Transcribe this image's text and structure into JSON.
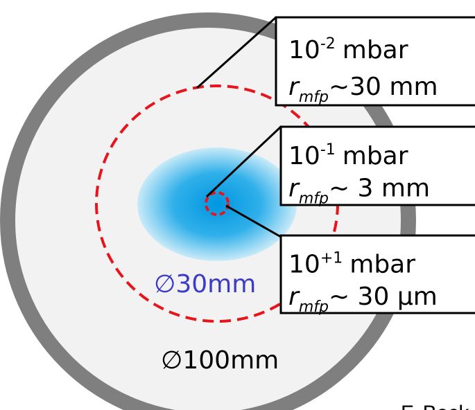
{
  "boxes": [
    {
      "pressure_base": "10",
      "pressure_exponent": "-2",
      "pressure_unit": "mbar",
      "symbol": "r",
      "subscript": "mfp",
      "distance": "~30 mm"
    },
    {
      "pressure_base": "10",
      "pressure_exponent": "-1",
      "pressure_unit": "mbar",
      "symbol": "r",
      "subscript": "mfp",
      "distance": "~ 3 mm"
    },
    {
      "pressure_base": "10",
      "pressure_exponent": "+1",
      "pressure_unit": "mbar",
      "symbol": "r",
      "subscript": "mfp",
      "distance": "~ 30 μm"
    }
  ],
  "inner_diameter": "∅30mm",
  "outer_diameter": "∅100mm",
  "credit": "F. Beck"
}
